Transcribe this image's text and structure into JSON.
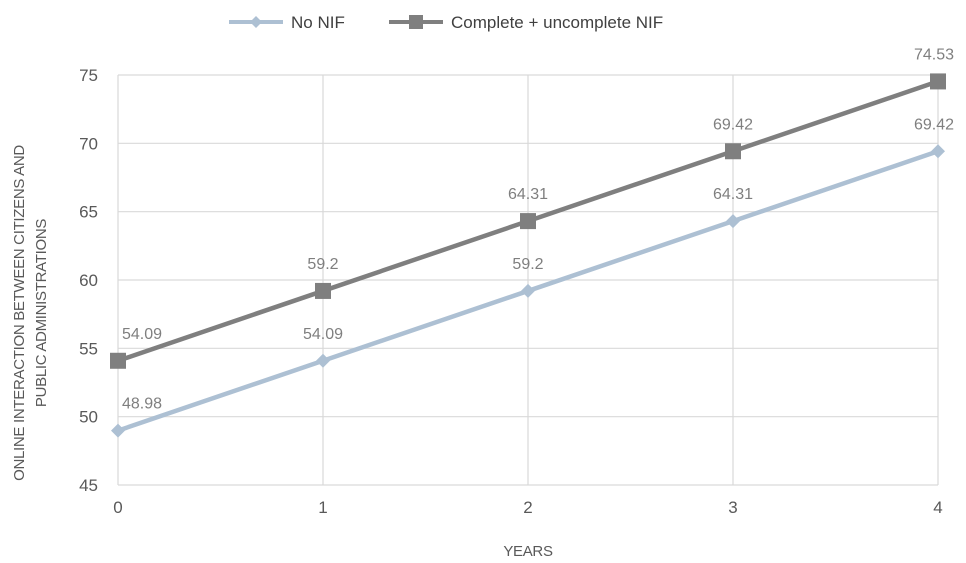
{
  "chart_data": {
    "type": "line",
    "x": [
      0,
      1,
      2,
      3,
      4
    ],
    "series": [
      {
        "name": "No NIF",
        "values": [
          48.98,
          54.09,
          59.2,
          64.31,
          69.42
        ],
        "labels": [
          "48.98",
          "54.09",
          "59.2",
          "64.31",
          "69.42"
        ],
        "color": "#adc0d3",
        "marker": "diamond"
      },
      {
        "name": "Complete + uncomplete NIF",
        "values": [
          54.09,
          59.2,
          64.31,
          69.42,
          74.53
        ],
        "labels": [
          "54.09",
          "59.2",
          "64.31",
          "69.42",
          "74.53"
        ],
        "color": "#7f7f7f",
        "marker": "square"
      }
    ],
    "xlabel": "YEARS",
    "ylabel_lines": [
      "ONLINE INTERACTION BETWEEN CITIZENS AND",
      "PUBLIC ADMINISTRATIONS"
    ],
    "xlim": [
      0,
      4
    ],
    "ylim": [
      45,
      75
    ],
    "xticks": [
      "0",
      "1",
      "2",
      "3",
      "4"
    ],
    "yticks": [
      "45",
      "50",
      "55",
      "60",
      "65",
      "70",
      "75"
    ],
    "grid": true,
    "legend_position": "top",
    "gridline_color": "#d9d9d9"
  }
}
